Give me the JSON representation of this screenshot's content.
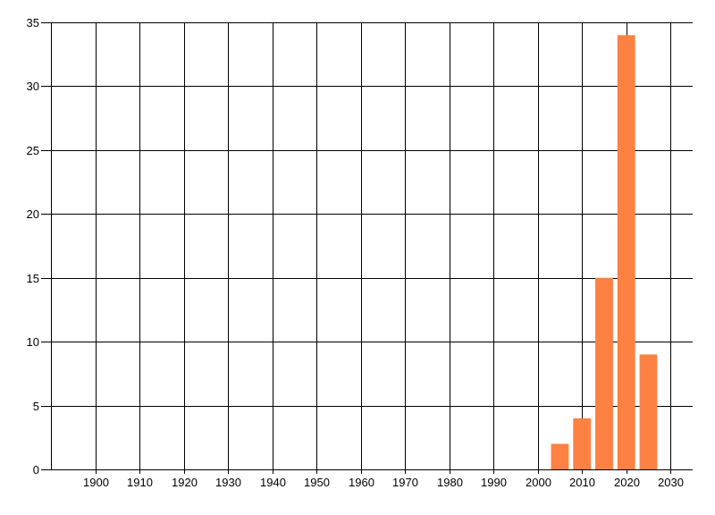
{
  "chart_data": {
    "type": "bar",
    "title": "",
    "xlabel": "",
    "ylabel": "",
    "x": [
      2005,
      2010,
      2015,
      2020,
      2025
    ],
    "values": [
      2,
      4,
      15,
      34,
      9
    ],
    "bar_width_years": 4,
    "bar_color": "#fc8142",
    "xlim": [
      1890,
      2035
    ],
    "ylim": [
      0,
      35
    ],
    "xticks": [
      1900,
      1910,
      1920,
      1930,
      1940,
      1950,
      1960,
      1970,
      1980,
      1990,
      2000,
      2010,
      2020,
      2030
    ],
    "yticks": [
      0,
      5,
      10,
      15,
      20,
      25,
      30,
      35
    ],
    "grid": true,
    "legend": false,
    "axis_color": "#000000",
    "label_color": "#000000",
    "background": "#ffffff"
  }
}
